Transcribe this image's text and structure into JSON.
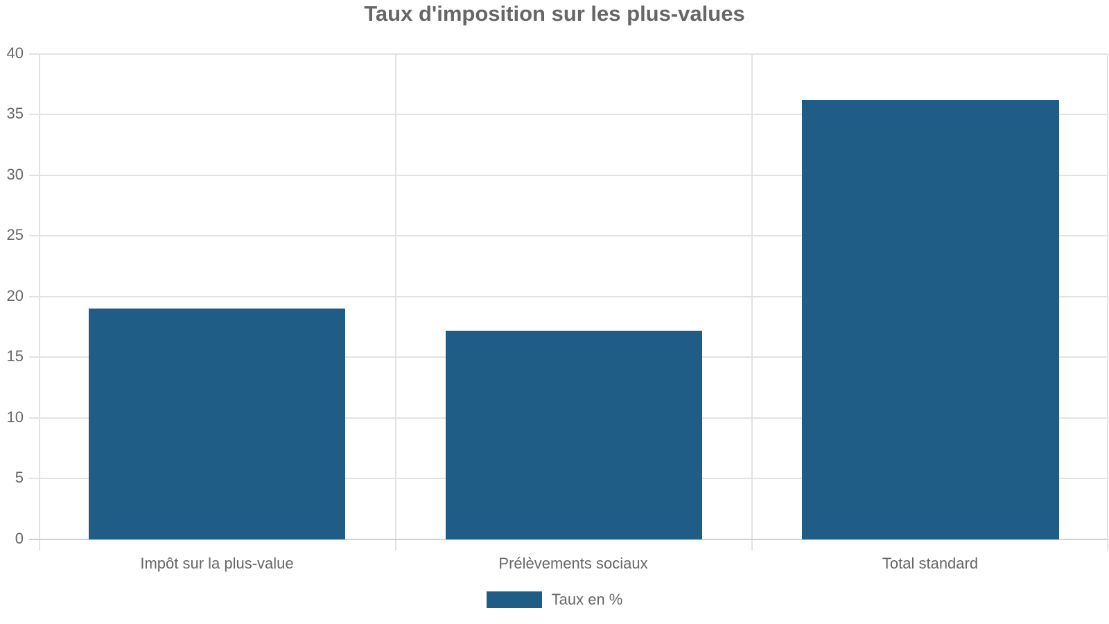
{
  "chart_data": {
    "type": "bar",
    "title": "Taux d'imposition sur les plus-values",
    "categories": [
      "Impôt sur la plus-value",
      "Prélèvements sociaux",
      "Total standard"
    ],
    "series": [
      {
        "name": "Taux en %",
        "values": [
          19,
          17.2,
          36.2
        ],
        "color": "#1f5c86"
      }
    ],
    "xlabel": "",
    "ylabel": "",
    "ylim": [
      0,
      40
    ],
    "yticks": [
      0,
      5,
      10,
      15,
      20,
      25,
      30,
      35,
      40
    ],
    "grid": true,
    "legend_position": "bottom"
  },
  "labels": {
    "title": "Taux d'imposition sur les plus-values",
    "legend": "Taux en %",
    "y": [
      "0",
      "5",
      "10",
      "15",
      "20",
      "25",
      "30",
      "35",
      "40"
    ],
    "x": [
      "Impôt sur la plus-value",
      "Prélèvements sociaux",
      "Total standard"
    ]
  }
}
